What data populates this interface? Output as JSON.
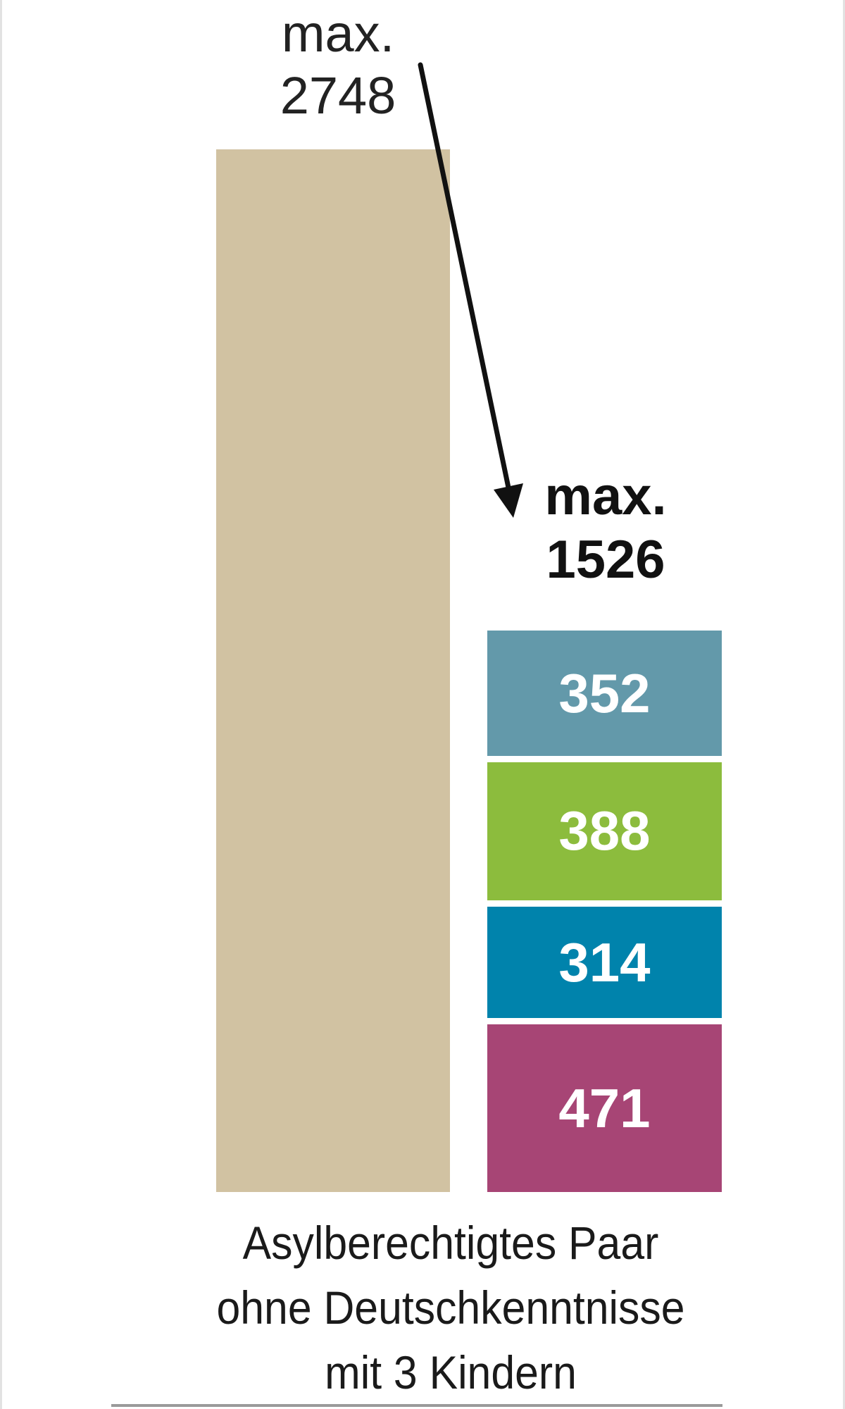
{
  "chart_data": {
    "type": "bar",
    "title": "",
    "bars": [
      {
        "label": "max. 2748",
        "label_lines": [
          "max.",
          "2748"
        ],
        "value": 2748,
        "color": "#d1c2a2"
      },
      {
        "label": "max. 1526",
        "label_lines": [
          "max.",
          "1526"
        ],
        "value": 1526,
        "stacked": true,
        "segments": [
          {
            "value": 352,
            "color": "#6399aa"
          },
          {
            "value": 388,
            "color": "#8cbc3d"
          },
          {
            "value": 314,
            "color": "#0083ac"
          },
          {
            "value": 471,
            "color": "#a74575"
          }
        ]
      }
    ],
    "annotation": "arrow from max. 2748 to max. 1526",
    "caption_lines": [
      "Asylberechtigtes Paar",
      "ohne Deutschkenntnisse",
      "mit 3 Kindern"
    ],
    "grid": false,
    "legend": "none"
  }
}
